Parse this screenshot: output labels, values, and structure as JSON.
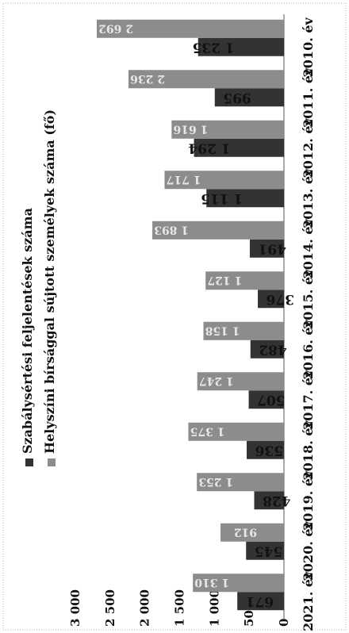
{
  "chart_data": {
    "type": "bar",
    "categories": [
      "2010. év",
      "2011. év",
      "2012. év",
      "2013. év",
      "2014. év",
      "2015. év",
      "2016. év",
      "2017. év",
      "2018. év",
      "2019. év",
      "2020. év",
      "2021. év"
    ],
    "series": [
      {
        "name": "Szabálysértési feljelentések száma",
        "color": "#333333",
        "values": [
          1235,
          995,
          1294,
          1115,
          491,
          376,
          482,
          507,
          536,
          428,
          545,
          671
        ],
        "labels": [
          "1 235",
          "995",
          "1 294",
          "1 115",
          "491",
          "376",
          "482",
          "507",
          "536",
          "428",
          "545",
          "671"
        ]
      },
      {
        "name": "Helyszíni bírsággal sújtott személyek száma (fő)",
        "color": "#8c8c8c",
        "values": [
          2692,
          2236,
          1616,
          1717,
          1893,
          1127,
          1158,
          1247,
          1375,
          1253,
          912,
          1310
        ],
        "labels": [
          "2 692",
          "2 236",
          "1 616",
          "1 717",
          "1 893",
          "1 127",
          "1 158",
          "1 247",
          "1 375",
          "1 253",
          "912",
          "1 310"
        ]
      }
    ],
    "ylim": [
      0,
      3000
    ],
    "yticks": [
      {
        "value": 0,
        "label": "0"
      },
      {
        "value": 500,
        "label": "500"
      },
      {
        "value": 1000,
        "label": "1 000"
      },
      {
        "value": 1500,
        "label": "1 500"
      },
      {
        "value": 2000,
        "label": "2 000"
      },
      {
        "value": 2500,
        "label": "2 500"
      },
      {
        "value": 3000,
        "label": "3 000"
      }
    ],
    "legend": "top-right",
    "orientation": "rotated-90-clockwise"
  }
}
